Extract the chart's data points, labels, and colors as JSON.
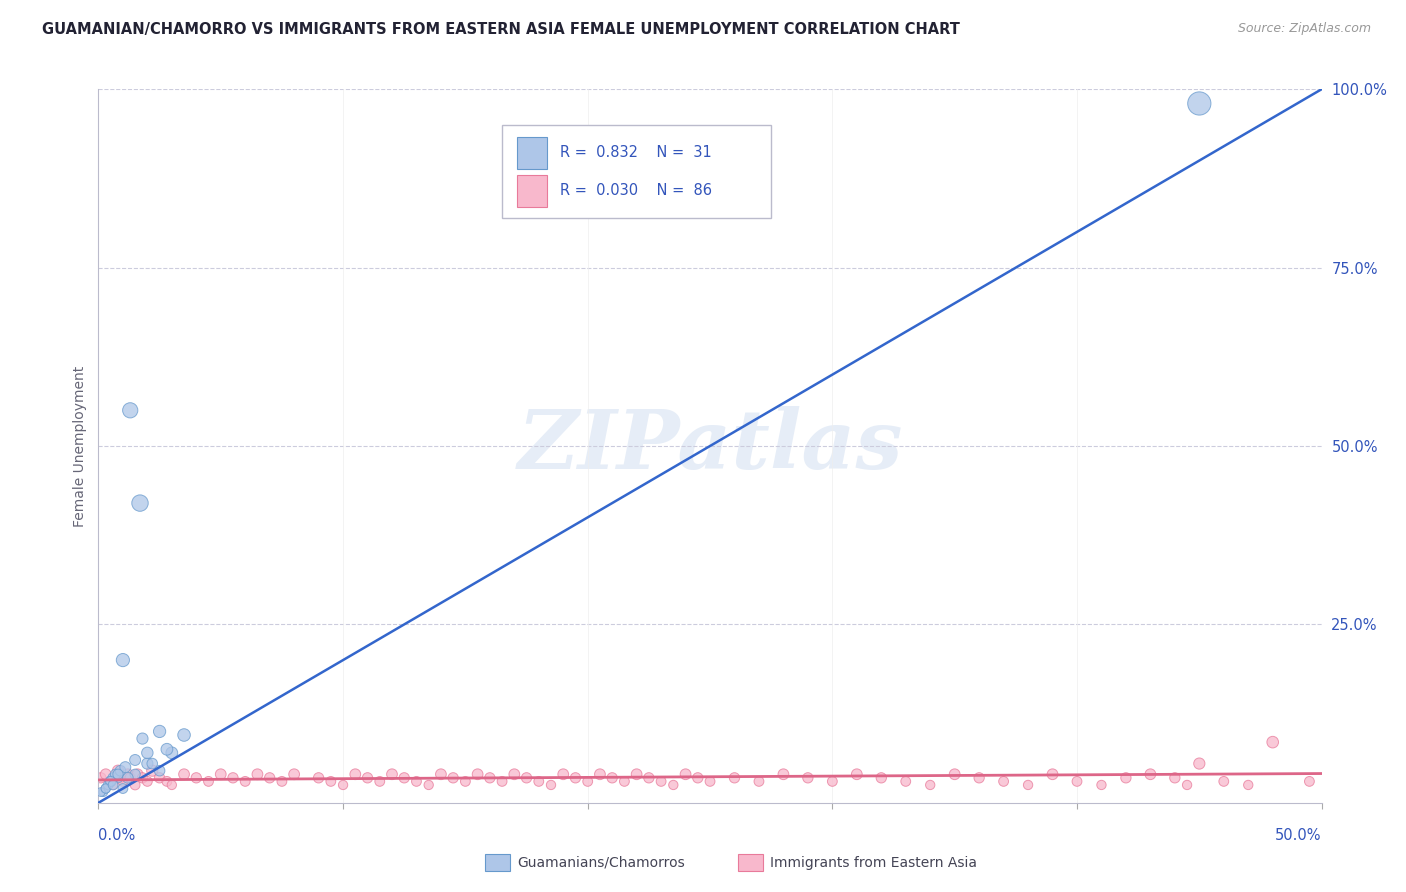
{
  "title": "GUAMANIAN/CHAMORRO VS IMMIGRANTS FROM EASTERN ASIA FEMALE UNEMPLOYMENT CORRELATION CHART",
  "source": "Source: ZipAtlas.com",
  "ylabel": "Female Unemployment",
  "xmin": 0.0,
  "xmax": 50.0,
  "ymin": 0.0,
  "ymax": 100.0,
  "watermark": "ZIPatlas",
  "blue_fill": "#aec6e8",
  "blue_edge": "#6699cc",
  "pink_fill": "#f8b8cc",
  "pink_edge": "#e87a9a",
  "trend_blue": "#3366cc",
  "trend_pink": "#dd6688",
  "legend_text_color": "#3355bb",
  "right_tick_color": "#3355bb",
  "grid_color": "#ccccdd",
  "guam_x": [
    0.5,
    1.0,
    1.5,
    2.0,
    2.5,
    0.2,
    0.8,
    1.2,
    3.0,
    0.3,
    0.6,
    1.8,
    2.2,
    0.4,
    0.7,
    1.0,
    1.5,
    2.8,
    0.1,
    0.5,
    1.3,
    0.9,
    2.0,
    0.3,
    1.7,
    2.5,
    0.6,
    1.1,
    0.8,
    3.5,
    45.0
  ],
  "guam_y": [
    3.0,
    2.0,
    4.0,
    5.5,
    4.5,
    1.5,
    3.5,
    3.5,
    7.0,
    2.0,
    3.5,
    9.0,
    5.5,
    2.5,
    4.0,
    20.0,
    6.0,
    7.5,
    1.5,
    3.0,
    55.0,
    4.5,
    7.0,
    2.0,
    42.0,
    10.0,
    2.5,
    5.0,
    4.0,
    9.5,
    98.0
  ],
  "guam_sizes": [
    60,
    50,
    55,
    65,
    58,
    40,
    52,
    60,
    72,
    45,
    55,
    65,
    58,
    48,
    55,
    90,
    62,
    72,
    40,
    52,
    120,
    58,
    68,
    45,
    140,
    78,
    50,
    62,
    55,
    82,
    280
  ],
  "east_x": [
    0.1,
    0.3,
    0.5,
    0.6,
    0.8,
    0.9,
    1.0,
    1.2,
    1.3,
    1.5,
    1.6,
    1.8,
    2.0,
    2.2,
    2.5,
    2.8,
    3.0,
    3.5,
    4.0,
    4.5,
    5.0,
    5.5,
    6.0,
    6.5,
    7.0,
    7.5,
    8.0,
    9.0,
    9.5,
    10.0,
    10.5,
    11.0,
    11.5,
    12.0,
    12.5,
    13.0,
    13.5,
    14.0,
    14.5,
    15.0,
    15.5,
    16.0,
    16.5,
    17.0,
    17.5,
    18.0,
    18.5,
    19.0,
    19.5,
    20.0,
    20.5,
    21.0,
    21.5,
    22.0,
    22.5,
    23.0,
    23.5,
    24.0,
    24.5,
    25.0,
    26.0,
    27.0,
    28.0,
    29.0,
    30.0,
    31.0,
    32.0,
    33.0,
    34.0,
    35.0,
    36.0,
    37.0,
    38.0,
    39.0,
    40.0,
    41.0,
    42.0,
    43.0,
    44.0,
    44.5,
    45.0,
    46.0,
    47.0,
    48.0,
    49.5
  ],
  "east_y": [
    3.5,
    4.0,
    3.0,
    2.5,
    4.5,
    3.5,
    3.0,
    4.0,
    3.5,
    2.5,
    4.0,
    3.5,
    3.0,
    4.5,
    3.5,
    3.0,
    2.5,
    4.0,
    3.5,
    3.0,
    4.0,
    3.5,
    3.0,
    4.0,
    3.5,
    3.0,
    4.0,
    3.5,
    3.0,
    2.5,
    4.0,
    3.5,
    3.0,
    4.0,
    3.5,
    3.0,
    2.5,
    4.0,
    3.5,
    3.0,
    4.0,
    3.5,
    3.0,
    4.0,
    3.5,
    3.0,
    2.5,
    4.0,
    3.5,
    3.0,
    4.0,
    3.5,
    3.0,
    4.0,
    3.5,
    3.0,
    2.5,
    4.0,
    3.5,
    3.0,
    3.5,
    3.0,
    4.0,
    3.5,
    3.0,
    4.0,
    3.5,
    3.0,
    2.5,
    4.0,
    3.5,
    3.0,
    2.5,
    4.0,
    3.0,
    2.5,
    3.5,
    4.0,
    3.5,
    2.5,
    5.5,
    3.0,
    2.5,
    8.5,
    3.0
  ],
  "east_sizes": [
    55,
    60,
    50,
    45,
    65,
    55,
    50,
    60,
    55,
    50,
    60,
    55,
    50,
    65,
    55,
    50,
    45,
    60,
    55,
    50,
    60,
    55,
    50,
    60,
    55,
    50,
    60,
    55,
    50,
    45,
    60,
    55,
    50,
    60,
    55,
    50,
    45,
    60,
    55,
    50,
    60,
    55,
    50,
    60,
    55,
    50,
    45,
    60,
    55,
    50,
    60,
    55,
    50,
    60,
    55,
    50,
    45,
    60,
    55,
    50,
    55,
    50,
    60,
    55,
    50,
    60,
    55,
    50,
    45,
    60,
    55,
    50,
    45,
    60,
    50,
    45,
    55,
    60,
    55,
    45,
    65,
    50,
    45,
    70,
    50
  ]
}
